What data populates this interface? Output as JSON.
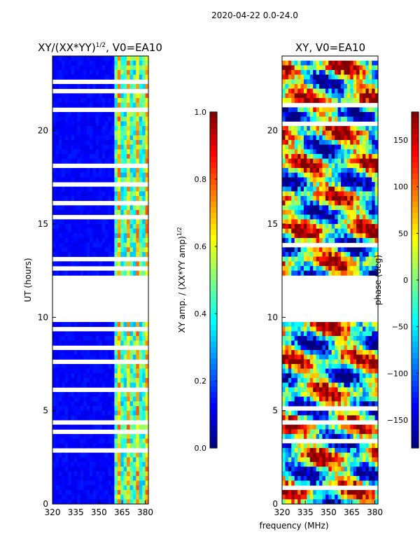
{
  "figure": {
    "suptitle": "2020-04-22 0.0-24.0",
    "xlabel": "frequency (MHz)"
  },
  "chart_data": [
    {
      "type": "heatmap",
      "id": "left",
      "title": "XY/(XX*YY)",
      "title_sup": "1/2",
      "title_suffix": ", V0=EA10",
      "xlabel": "frequency (MHz)",
      "ylabel": "UT (hours)",
      "xlim": [
        320,
        382
      ],
      "ylim": [
        0,
        24
      ],
      "xticks": [
        320,
        335,
        350,
        365,
        380
      ],
      "yticks": [
        0,
        5,
        10,
        15,
        20
      ],
      "colorbar": {
        "label": "XY amp. / (XX*YY amp)",
        "label_sup": "1/2",
        "range": [
          0,
          1
        ],
        "ticks": [
          "0.0",
          "0.2",
          "0.4",
          "0.6",
          "0.8",
          "1.0"
        ],
        "tick_values": [
          0,
          0.2,
          0.4,
          0.6,
          0.8,
          1.0
        ]
      },
      "flagged_ut_ranges": [
        [
          9.8,
          12.3
        ],
        [
          15.2,
          15.6
        ]
      ]
    },
    {
      "type": "heatmap",
      "id": "right",
      "title": "XY, V0=EA10",
      "xlabel": "frequency (MHz)",
      "ylabel": "",
      "xlim": [
        320,
        382
      ],
      "ylim": [
        0,
        24
      ],
      "xticks": [
        320,
        335,
        350,
        365,
        380
      ],
      "yticks": [
        0,
        5,
        10,
        15,
        20
      ],
      "colorbar": {
        "label": "phase (deg)",
        "range": [
          -180,
          180
        ],
        "ticks": [
          "150",
          "100",
          "50",
          "0",
          "−50",
          "−100",
          "−150"
        ],
        "tick_values": [
          150,
          100,
          50,
          0,
          -50,
          -100,
          -150
        ]
      },
      "flagged_ut_ranges": [
        [
          9.8,
          12.3
        ]
      ]
    }
  ]
}
